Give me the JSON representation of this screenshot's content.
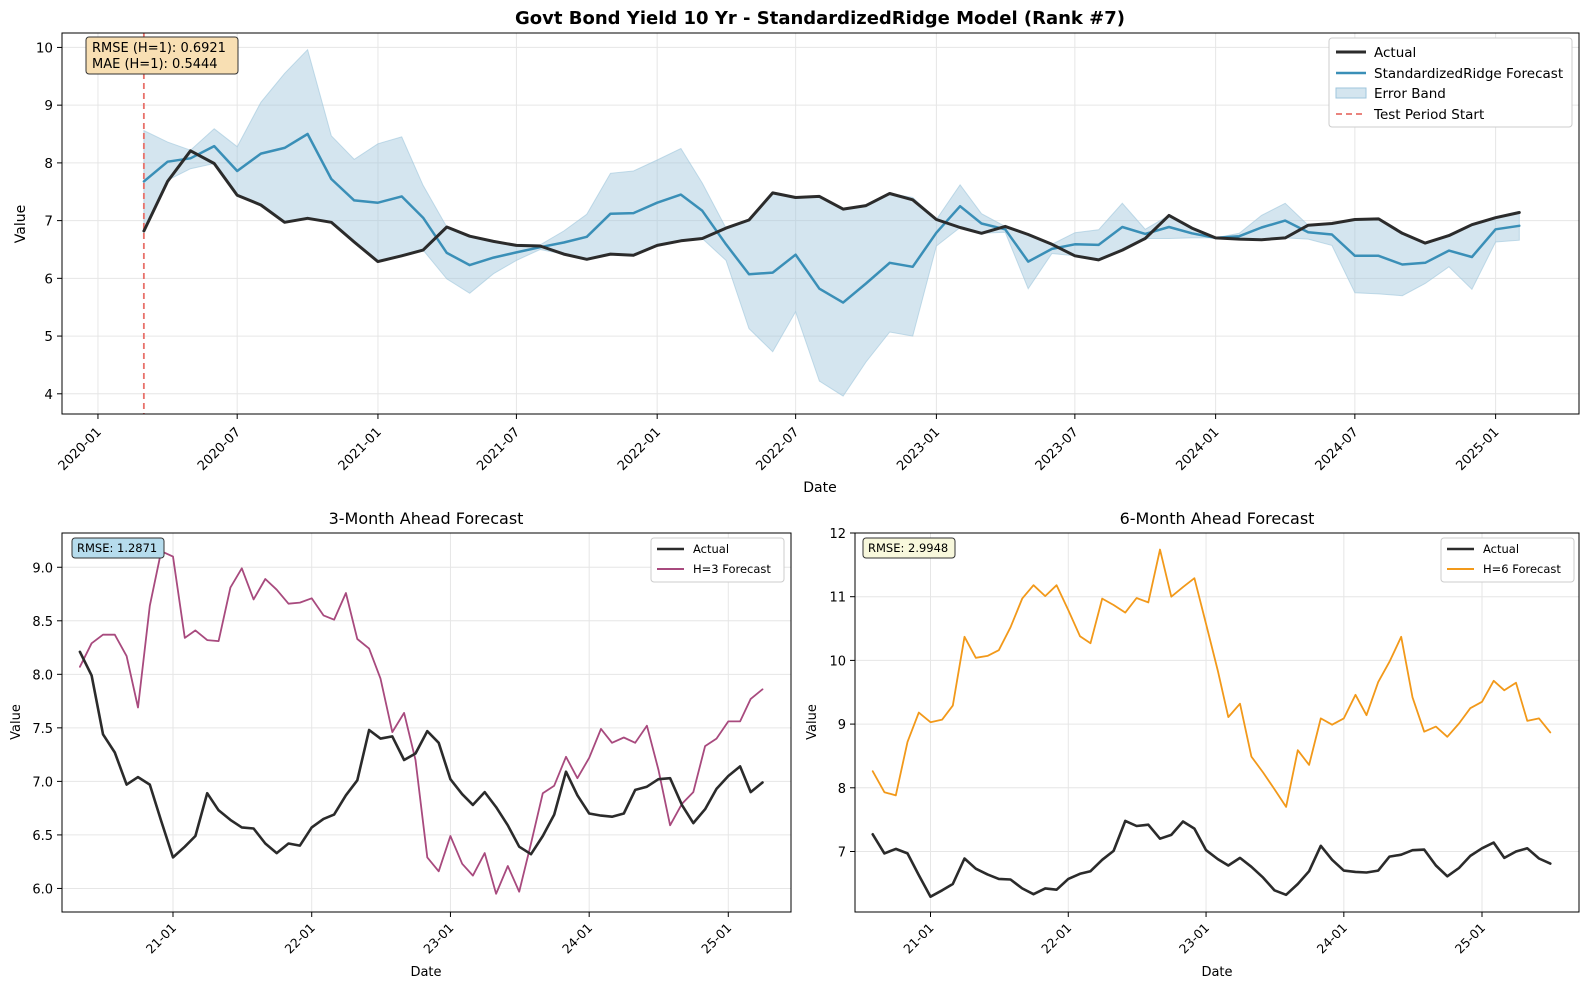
{
  "chart_data": [
    {
      "type": "line",
      "title": "Govt Bond Yield 10 Yr - StandardizedRidge Model (Rank #7)",
      "xlabel": "Date",
      "ylabel": "Value",
      "xlim": [
        "2019-11-15",
        "2025-04-20"
      ],
      "ylim": [
        3.65,
        10.25
      ],
      "yticks": [
        4,
        5,
        6,
        7,
        8,
        9,
        10
      ],
      "xticks": [
        "2020-01",
        "2020-07",
        "2021-01",
        "2021-07",
        "2022-01",
        "2022-07",
        "2023-01",
        "2023-07",
        "2024-01",
        "2024-07",
        "2025-01"
      ],
      "grid": true,
      "legend_position": "top-right",
      "metrics": [
        "RMSE (H=1): 0.6921",
        "MAE (H=1): 0.5444"
      ],
      "x": [
        "2020-03",
        "2020-04",
        "2020-05",
        "2020-06",
        "2020-07",
        "2020-08",
        "2020-09",
        "2020-10",
        "2020-11",
        "2020-12",
        "2021-01",
        "2021-02",
        "2021-03",
        "2021-04",
        "2021-05",
        "2021-06",
        "2021-07",
        "2021-08",
        "2021-09",
        "2021-10",
        "2021-11",
        "2021-12",
        "2022-01",
        "2022-02",
        "2022-03",
        "2022-04",
        "2022-05",
        "2022-06",
        "2022-07",
        "2022-08",
        "2022-09",
        "2022-10",
        "2022-11",
        "2022-12",
        "2023-01",
        "2023-02",
        "2023-03",
        "2023-04",
        "2023-05",
        "2023-06",
        "2023-07",
        "2023-08",
        "2023-09",
        "2023-10",
        "2023-11",
        "2023-12",
        "2024-01",
        "2024-02",
        "2024-03",
        "2024-04",
        "2024-05",
        "2024-06",
        "2024-07",
        "2024-08",
        "2024-09",
        "2024-10",
        "2024-11",
        "2024-12",
        "2025-01",
        "2025-02"
      ],
      "series": [
        {
          "name": "Actual",
          "color": "#2b2b2b",
          "values": [
            6.82,
            7.68,
            8.21,
            7.99,
            7.44,
            7.27,
            6.97,
            7.04,
            6.97,
            6.63,
            6.29,
            6.39,
            6.49,
            6.89,
            6.73,
            6.64,
            6.57,
            6.56,
            6.42,
            6.33,
            6.42,
            6.4,
            6.57,
            6.65,
            6.69,
            6.87,
            7.01,
            7.48,
            7.4,
            7.42,
            7.2,
            7.26,
            7.47,
            7.36,
            7.02,
            6.88,
            6.78,
            6.9,
            6.76,
            6.59,
            6.39,
            6.32,
            6.49,
            6.69,
            7.09,
            6.87,
            6.7,
            6.68,
            6.67,
            6.7,
            6.92,
            6.95,
            7.02,
            7.03,
            6.78,
            6.61,
            6.74,
            6.93,
            7.05,
            7.14
          ]
        },
        {
          "name": "StandardizedRidge Forecast",
          "color": "#3a8fb7",
          "values": [
            7.68,
            8.02,
            8.08,
            8.29,
            7.86,
            8.16,
            8.26,
            8.5,
            7.72,
            7.35,
            7.31,
            7.42,
            7.05,
            6.44,
            6.23,
            6.36,
            6.45,
            6.54,
            6.62,
            6.72,
            7.12,
            7.13,
            7.31,
            7.45,
            7.17,
            6.59,
            6.07,
            6.1,
            6.41,
            5.82,
            5.58,
            5.91,
            6.27,
            6.2,
            6.79,
            7.25,
            6.95,
            6.85,
            6.29,
            6.51,
            6.59,
            6.58,
            6.89,
            6.77,
            6.89,
            6.78,
            6.7,
            6.73,
            6.88,
            7.0,
            6.8,
            6.76,
            6.39,
            6.39,
            6.24,
            6.27,
            6.48,
            6.37,
            6.85,
            6.91
          ]
        }
      ],
      "band": {
        "name": "Error Band",
        "color": "#9fc6dc",
        "lower": [
          6.8,
          7.7,
          7.9,
          7.99,
          7.44,
          7.27,
          6.97,
          7.04,
          6.97,
          6.63,
          6.29,
          6.39,
          6.49,
          5.99,
          5.74,
          6.08,
          6.31,
          6.5,
          6.42,
          6.33,
          6.42,
          6.4,
          6.57,
          6.65,
          6.69,
          6.31,
          5.13,
          4.73,
          5.42,
          4.22,
          3.96,
          4.55,
          5.07,
          5.0,
          6.56,
          6.88,
          6.78,
          6.8,
          5.82,
          6.43,
          6.39,
          6.32,
          6.49,
          6.69,
          6.69,
          6.7,
          6.7,
          6.68,
          6.67,
          6.7,
          6.68,
          6.57,
          5.75,
          5.73,
          5.7,
          5.91,
          6.2,
          5.81,
          6.63,
          6.66
        ],
        "upper": [
          8.56,
          8.36,
          8.22,
          8.59,
          8.28,
          9.05,
          9.55,
          9.96,
          8.47,
          8.06,
          8.33,
          8.45,
          7.61,
          6.89,
          6.73,
          6.64,
          6.59,
          6.58,
          6.82,
          7.11,
          7.82,
          7.86,
          8.05,
          8.25,
          7.65,
          6.87,
          7.01,
          7.48,
          7.4,
          7.42,
          7.2,
          7.27,
          7.47,
          7.4,
          7.02,
          7.62,
          7.12,
          6.9,
          6.76,
          6.59,
          6.79,
          6.84,
          7.3,
          6.85,
          7.09,
          6.87,
          6.7,
          6.78,
          7.09,
          7.3,
          6.92,
          6.95,
          7.02,
          7.03,
          6.78,
          6.61,
          6.76,
          6.93,
          7.07,
          7.16
        ]
      },
      "test_start": {
        "name": "Test Period Start",
        "x": "2020-03",
        "color": "#e8726b"
      }
    },
    {
      "type": "line",
      "title": "3-Month Ahead Forecast",
      "xlabel": "Date",
      "ylabel": "Value",
      "xlim": [
        "2020-03-15",
        "2025-06-15"
      ],
      "ylim": [
        5.78,
        9.32
      ],
      "yticks": [
        6.0,
        6.5,
        7.0,
        7.5,
        8.0,
        8.5,
        9.0
      ],
      "ytick_labels": [
        "6.0",
        "6.5",
        "7.0",
        "7.5",
        "8.0",
        "8.5",
        "9.0"
      ],
      "xticks": [
        "2021-01",
        "2022-01",
        "2023-01",
        "2024-01",
        "2025-01"
      ],
      "xtick_labels": [
        "21-01",
        "22-01",
        "23-01",
        "24-01",
        "25-01"
      ],
      "grid": true,
      "legend_position": "top-right",
      "metric": "RMSE: 1.2871",
      "x": [
        "2020-05",
        "2020-06",
        "2020-07",
        "2020-08",
        "2020-09",
        "2020-10",
        "2020-11",
        "2020-12",
        "2021-01",
        "2021-02",
        "2021-03",
        "2021-04",
        "2021-05",
        "2021-06",
        "2021-07",
        "2021-08",
        "2021-09",
        "2021-10",
        "2021-11",
        "2021-12",
        "2022-01",
        "2022-02",
        "2022-03",
        "2022-04",
        "2022-05",
        "2022-06",
        "2022-07",
        "2022-08",
        "2022-09",
        "2022-10",
        "2022-11",
        "2022-12",
        "2023-01",
        "2023-02",
        "2023-03",
        "2023-04",
        "2023-05",
        "2023-06",
        "2023-07",
        "2023-08",
        "2023-09",
        "2023-10",
        "2023-11",
        "2023-12",
        "2024-01",
        "2024-02",
        "2024-03",
        "2024-04",
        "2024-05",
        "2024-06",
        "2024-07",
        "2024-08",
        "2024-09",
        "2024-10",
        "2024-11",
        "2024-12",
        "2025-01",
        "2025-02",
        "2025-03",
        "2025-04"
      ],
      "series": [
        {
          "name": "Actual",
          "color": "#2b2b2b",
          "values": [
            8.21,
            7.99,
            7.44,
            7.27,
            6.97,
            7.04,
            6.97,
            6.63,
            6.29,
            6.39,
            6.49,
            6.89,
            6.73,
            6.64,
            6.57,
            6.56,
            6.42,
            6.33,
            6.42,
            6.4,
            6.57,
            6.65,
            6.69,
            6.87,
            7.01,
            7.48,
            7.4,
            7.42,
            7.2,
            7.26,
            7.47,
            7.36,
            7.02,
            6.88,
            6.78,
            6.9,
            6.76,
            6.59,
            6.39,
            6.32,
            6.49,
            6.69,
            7.09,
            6.87,
            6.7,
            6.68,
            6.67,
            6.7,
            6.92,
            6.95,
            7.02,
            7.03,
            6.78,
            6.61,
            6.74,
            6.93,
            7.05,
            7.14,
            6.9,
            6.99
          ]
        },
        {
          "name": "H=3 Forecast",
          "color": "#a84a7e",
          "values": [
            8.07,
            8.29,
            8.37,
            8.37,
            8.17,
            7.69,
            8.64,
            9.15,
            9.1,
            8.34,
            8.41,
            8.32,
            8.31,
            8.81,
            8.99,
            8.7,
            8.89,
            8.79,
            8.66,
            8.67,
            8.71,
            8.55,
            8.51,
            8.76,
            8.33,
            8.24,
            7.96,
            7.46,
            7.64,
            7.2,
            6.29,
            6.16,
            6.49,
            6.23,
            6.12,
            6.33,
            5.95,
            6.21,
            5.97,
            6.42,
            6.89,
            6.96,
            7.23,
            7.03,
            7.22,
            7.49,
            7.36,
            7.41,
            7.36,
            7.52,
            7.11,
            6.59,
            6.79,
            6.9,
            7.33,
            7.4,
            7.56,
            7.56,
            7.77,
            7.86
          ]
        }
      ]
    },
    {
      "type": "line",
      "title": "6-Month Ahead Forecast",
      "xlabel": "Date",
      "ylabel": "Value",
      "xlim": [
        "2020-06-15",
        "2025-09-15"
      ],
      "ylim": [
        6.05,
        12.0
      ],
      "yticks": [
        7,
        8,
        9,
        10,
        11,
        12
      ],
      "xticks": [
        "2021-01",
        "2022-01",
        "2023-01",
        "2024-01",
        "2025-01"
      ],
      "xtick_labels": [
        "21-01",
        "22-01",
        "23-01",
        "24-01",
        "25-01"
      ],
      "grid": true,
      "legend_position": "top-right",
      "metric": "RMSE: 2.9948",
      "x": [
        "2020-08",
        "2020-09",
        "2020-10",
        "2020-11",
        "2020-12",
        "2021-01",
        "2021-02",
        "2021-03",
        "2021-04",
        "2021-05",
        "2021-06",
        "2021-07",
        "2021-08",
        "2021-09",
        "2021-10",
        "2021-11",
        "2021-12",
        "2022-01",
        "2022-02",
        "2022-03",
        "2022-04",
        "2022-05",
        "2022-06",
        "2022-07",
        "2022-08",
        "2022-09",
        "2022-10",
        "2022-11",
        "2022-12",
        "2023-01",
        "2023-02",
        "2023-03",
        "2023-04",
        "2023-05",
        "2023-06",
        "2023-07",
        "2023-08",
        "2023-09",
        "2023-10",
        "2023-11",
        "2023-12",
        "2024-01",
        "2024-02",
        "2024-03",
        "2024-04",
        "2024-05",
        "2024-06",
        "2024-07",
        "2024-08",
        "2024-09",
        "2024-10",
        "2024-11",
        "2024-12",
        "2025-01",
        "2025-02",
        "2025-03",
        "2025-04",
        "2025-05",
        "2025-06",
        "2025-07"
      ],
      "series": [
        {
          "name": "Actual",
          "color": "#2b2b2b",
          "values": [
            7.27,
            6.97,
            7.04,
            6.97,
            6.63,
            6.29,
            6.39,
            6.49,
            6.89,
            6.73,
            6.64,
            6.57,
            6.56,
            6.42,
            6.33,
            6.42,
            6.4,
            6.57,
            6.65,
            6.69,
            6.87,
            7.01,
            7.48,
            7.4,
            7.42,
            7.2,
            7.26,
            7.47,
            7.36,
            7.02,
            6.88,
            6.78,
            6.9,
            6.76,
            6.59,
            6.39,
            6.32,
            6.49,
            6.69,
            7.09,
            6.87,
            6.7,
            6.68,
            6.67,
            6.7,
            6.92,
            6.95,
            7.02,
            7.03,
            6.78,
            6.61,
            6.74,
            6.93,
            7.05,
            7.14,
            6.9,
            7.0,
            7.05,
            6.89,
            6.81
          ]
        },
        {
          "name": "H=6 Forecast",
          "color": "#f2991a",
          "values": [
            8.26,
            7.93,
            7.88,
            8.72,
            9.18,
            9.03,
            9.07,
            9.29,
            10.37,
            10.04,
            10.07,
            10.16,
            10.52,
            10.97,
            11.18,
            11.01,
            11.18,
            10.79,
            10.38,
            10.27,
            10.97,
            10.87,
            10.75,
            10.98,
            10.91,
            11.74,
            11.0,
            11.15,
            11.29,
            10.57,
            9.84,
            9.11,
            9.32,
            8.49,
            8.24,
            7.98,
            7.7,
            8.59,
            8.36,
            9.09,
            8.99,
            9.09,
            9.46,
            9.14,
            9.66,
            9.98,
            10.37,
            9.42,
            8.88,
            8.96,
            8.8,
            9.01,
            9.25,
            9.35,
            9.68,
            9.53,
            9.65,
            9.05,
            9.09,
            8.87
          ]
        }
      ]
    }
  ]
}
